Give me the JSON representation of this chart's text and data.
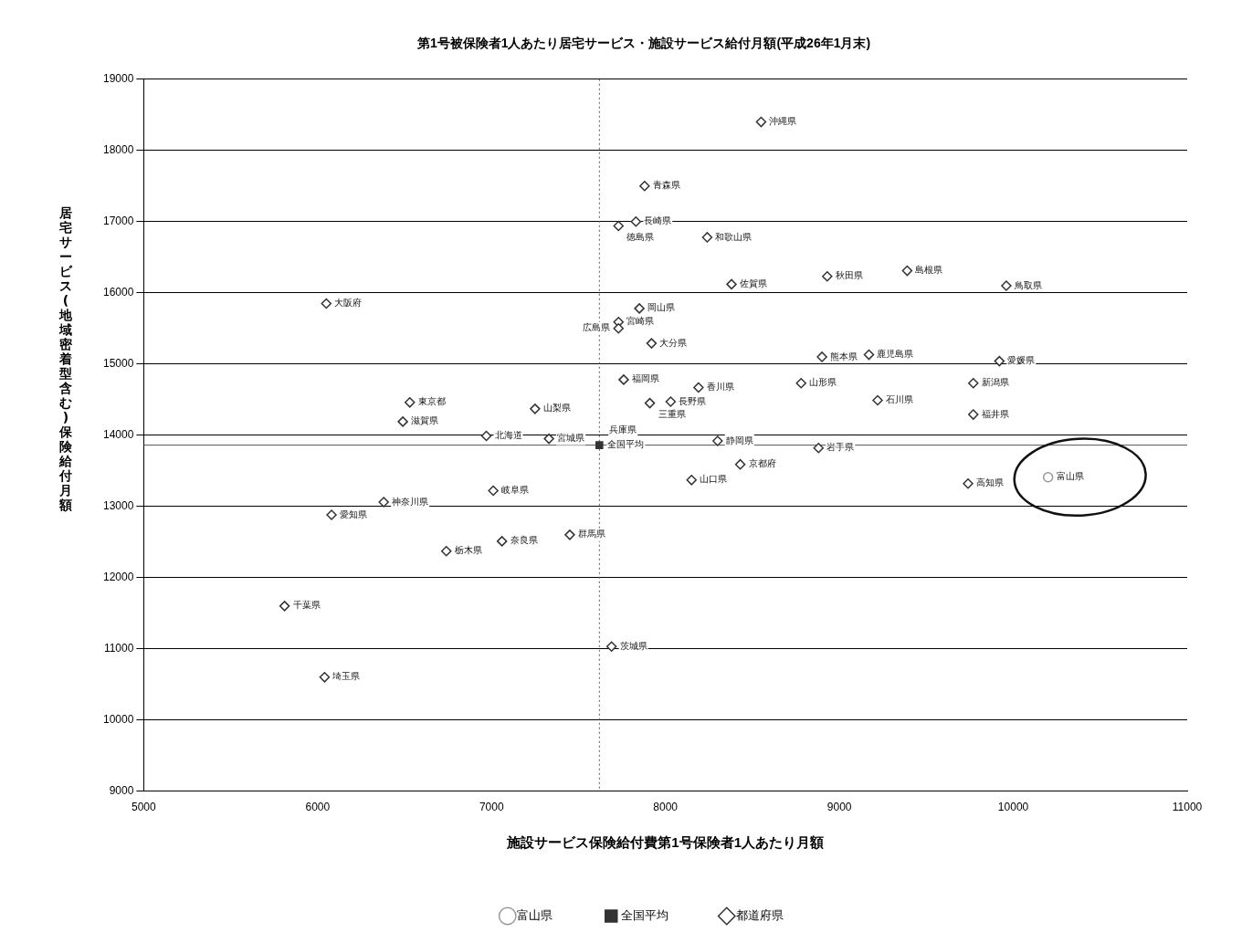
{
  "chart_data": {
    "type": "scatter",
    "title": "第1号被保険者1人あたり居宅サービス・施設サービス給付月額(平成26年1月末)",
    "xlabel": "施設サービス保険給付費第1号保険者1人あたり月額",
    "ylabel": "居宅サービス(地域密着型含む)保険給付月額",
    "xlim": [
      5000,
      11000
    ],
    "xticks": [
      5000,
      6000,
      7000,
      8000,
      9000,
      10000,
      11000
    ],
    "ylim": [
      9000,
      19000
    ],
    "yticks": [
      9000,
      10000,
      11000,
      12000,
      13000,
      14000,
      15000,
      16000,
      17000,
      18000,
      19000
    ],
    "grid": "y",
    "legend": "bottom",
    "series": [
      {
        "name": "富山県",
        "color": "#999999",
        "marker": "circle",
        "x": [
          10200
        ],
        "values": [
          13410
        ]
      },
      {
        "name": "全国平均",
        "color": "#333333",
        "marker": "square",
        "x": [
          7620
        ],
        "values": [
          13860
        ]
      },
      {
        "name": "都道府県",
        "color": "#333333",
        "marker": "diamond",
        "x": [
          8550,
          7880,
          7830,
          7730,
          8240,
          8380,
          8930,
          9390,
          9960,
          6050,
          7850,
          7730,
          7730,
          7920,
          8900,
          9170,
          9920,
          7760,
          8190,
          8780,
          9770,
          9220,
          9770,
          7910,
          8030,
          6530,
          6490,
          7250,
          6970,
          7330,
          7630,
          8300,
          8880,
          8430,
          8150,
          9740,
          7010,
          6380,
          6080,
          7450,
          7060,
          6740,
          5810,
          7690,
          6040
        ],
        "values": [
          18400,
          17500,
          17000,
          16940,
          16780,
          16120,
          16230,
          16310,
          16100,
          15850,
          15780,
          15590,
          15500,
          15290,
          15100,
          15130,
          15040,
          14780,
          14670,
          14730,
          14730,
          14490,
          14290,
          14450,
          14470,
          14460,
          14190,
          14370,
          13990,
          13950,
          null,
          13920,
          13820,
          13590,
          13370,
          13320,
          13220,
          13060,
          12880,
          12600,
          12510,
          12370,
          11600,
          11030,
          10600
        ]
      }
    ],
    "ref_lines": [
      {
        "axis": "x",
        "value": 7620,
        "line_style": "dotted",
        "color": "#555555"
      },
      {
        "axis": "y",
        "value": 13860,
        "line_style": "solid",
        "color": "#555555"
      }
    ],
    "annotations": [
      {
        "text": "富山県",
        "x": 10200,
        "y": 13410
      },
      {
        "text": "全国平均",
        "x": 7620,
        "y": 13860
      },
      {
        "text": "沖縄県",
        "x": 8550,
        "y": 18400
      },
      {
        "text": "青森県",
        "x": 7880,
        "y": 17500
      },
      {
        "text": "長崎県",
        "x": 7830,
        "y": 17000
      },
      {
        "text": "徳島県",
        "x": 7730,
        "y": 16940
      },
      {
        "text": "和歌山県",
        "x": 8240,
        "y": 16780
      },
      {
        "text": "佐賀県",
        "x": 8380,
        "y": 16120
      },
      {
        "text": "秋田県",
        "x": 8930,
        "y": 16230
      },
      {
        "text": "島根県",
        "x": 9390,
        "y": 16310
      },
      {
        "text": "鳥取県",
        "x": 9960,
        "y": 16100
      },
      {
        "text": "大阪府",
        "x": 6050,
        "y": 15850
      },
      {
        "text": "岡山県",
        "x": 7850,
        "y": 15780
      },
      {
        "text": "宮崎県",
        "x": 7730,
        "y": 15590
      },
      {
        "text": "広島県",
        "x": 7730,
        "y": 15500
      },
      {
        "text": "大分県",
        "x": 7920,
        "y": 15290
      },
      {
        "text": "熊本県",
        "x": 8900,
        "y": 15100
      },
      {
        "text": "鹿児島県",
        "x": 9170,
        "y": 15130
      },
      {
        "text": "愛媛県",
        "x": 9920,
        "y": 15040
      },
      {
        "text": "福岡県",
        "x": 7760,
        "y": 14780
      },
      {
        "text": "香川県",
        "x": 8190,
        "y": 14670
      },
      {
        "text": "山形県",
        "x": 8780,
        "y": 14730
      },
      {
        "text": "新潟県",
        "x": 9770,
        "y": 14730
      },
      {
        "text": "石川県",
        "x": 9220,
        "y": 14490
      },
      {
        "text": "福井県",
        "x": 9770,
        "y": 14290
      },
      {
        "text": "三重県",
        "x": 7910,
        "y": 14450
      },
      {
        "text": "長野県",
        "x": 8030,
        "y": 14470
      },
      {
        "text": "東京都",
        "x": 6530,
        "y": 14460
      },
      {
        "text": "滋賀県",
        "x": 6490,
        "y": 14190
      },
      {
        "text": "山梨県",
        "x": 7250,
        "y": 14370
      },
      {
        "text": "北海道",
        "x": 6970,
        "y": 13990
      },
      {
        "text": "宮城県",
        "x": 7330,
        "y": 13950
      },
      {
        "text": "兵庫県",
        "x": 7630,
        "y": 13900
      },
      {
        "text": "静岡県",
        "x": 8300,
        "y": 13920
      },
      {
        "text": "岩手県",
        "x": 8880,
        "y": 13820
      },
      {
        "text": "京都府",
        "x": 8430,
        "y": 13590
      },
      {
        "text": "山口県",
        "x": 8150,
        "y": 13370
      },
      {
        "text": "高知県",
        "x": 9740,
        "y": 13320
      },
      {
        "text": "岐阜県",
        "x": 7010,
        "y": 13220
      },
      {
        "text": "神奈川県",
        "x": 6380,
        "y": 13060
      },
      {
        "text": "愛知県",
        "x": 6080,
        "y": 12880
      },
      {
        "text": "群馬県",
        "x": 7450,
        "y": 12600
      },
      {
        "text": "奈良県",
        "x": 7060,
        "y": 12510
      },
      {
        "text": "栃木県",
        "x": 6740,
        "y": 12370
      },
      {
        "text": "千葉県",
        "x": 5810,
        "y": 11600
      },
      {
        "text": "茨城県",
        "x": 7690,
        "y": 11030
      },
      {
        "text": "埼玉県",
        "x": 6040,
        "y": 10600
      }
    ]
  }
}
